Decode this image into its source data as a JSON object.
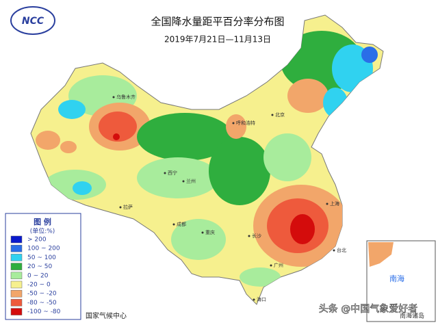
{
  "header": {
    "logo": "NCC",
    "title": "全国降水量距平百分率分布图",
    "subtitle": "2019年7月21日—11月13日"
  },
  "legend": {
    "title": "图 例",
    "unit": "(单位:%)",
    "items": [
      {
        "label": "> 200",
        "color": "#0a1acc"
      },
      {
        "label": "100 ~ 200",
        "color": "#2a6ee8"
      },
      {
        "label": "50 ~ 100",
        "color": "#30d2f0"
      },
      {
        "label": "20 ~ 50",
        "color": "#2fae3e"
      },
      {
        "label": "0 ~ 20",
        "color": "#a8ec9c"
      },
      {
        "label": "-20 ~ 0",
        "color": "#f6f08e"
      },
      {
        "label": "-50 ~ -20",
        "color": "#f2a66a"
      },
      {
        "label": "-80 ~ -50",
        "color": "#ee5a3c"
      },
      {
        "label": "-100 ~ -80",
        "color": "#d40c0c"
      }
    ]
  },
  "cities": [
    "乌鲁木齐",
    "拉萨",
    "西宁",
    "兰州",
    "呼和浩特",
    "北京",
    "成都",
    "重庆",
    "长沙",
    "广州",
    "上海",
    "台北",
    "海口"
  ],
  "inset": {
    "label": "南海",
    "islands": "南海诸岛"
  },
  "footer": {
    "source": "国家气候中心",
    "watermark": "头条 @中国气象爱好者"
  }
}
